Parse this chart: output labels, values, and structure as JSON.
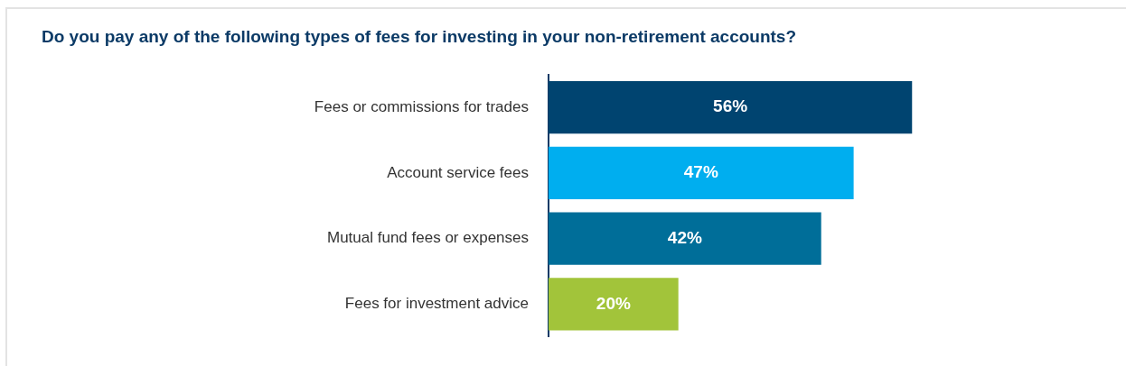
{
  "chart_data": {
    "type": "bar",
    "orientation": "horizontal",
    "title": "Do you pay any of the following types of fees for investing in your non-retirement accounts?",
    "categories": [
      "Fees or commissions for trades",
      "Account service fees",
      "Mutual fund fees or expenses",
      "Fees for investment advice"
    ],
    "values": [
      56,
      47,
      42,
      20
    ],
    "colors": [
      "#004470",
      "#00aeef",
      "#006e99",
      "#a2c43a"
    ],
    "value_labels": [
      "56%",
      "47%",
      "42%",
      "20%"
    ]
  }
}
